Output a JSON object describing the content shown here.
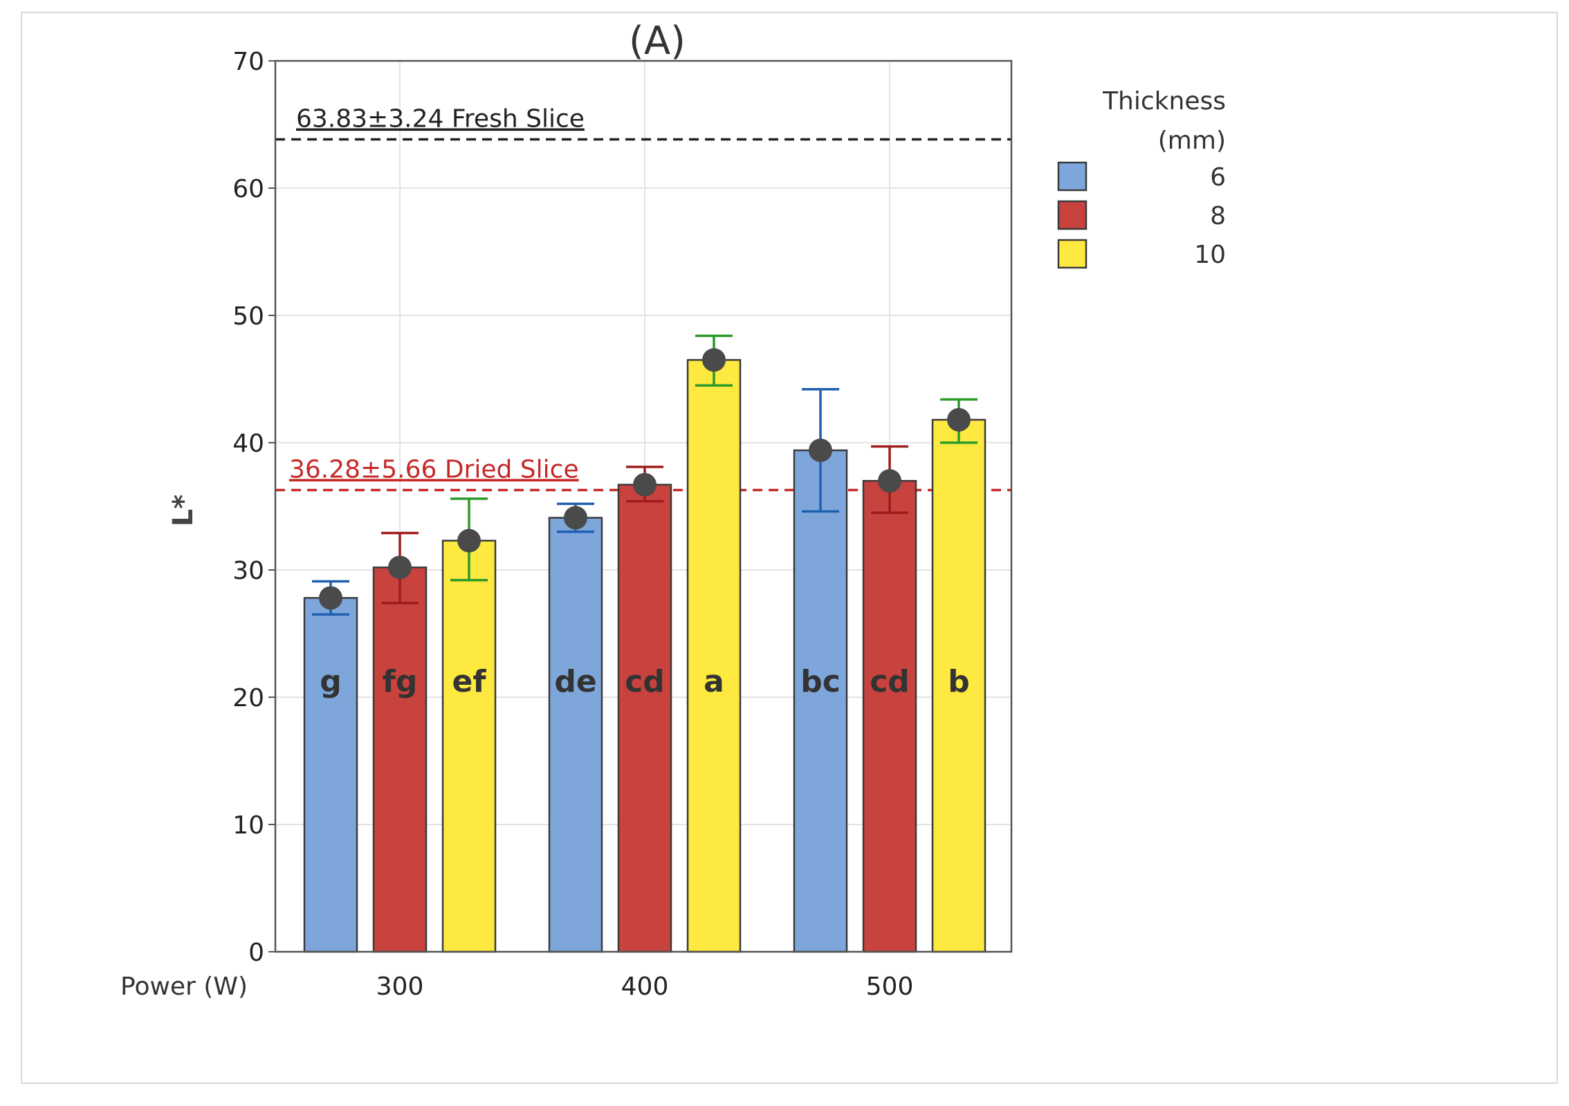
{
  "chart_data": {
    "type": "bar",
    "title": "(A)",
    "ylabel": "L*",
    "xlabel": "Power (W)",
    "ylim": [
      0,
      70
    ],
    "yticks": [
      0,
      10,
      20,
      30,
      40,
      50,
      60,
      70
    ],
    "grid": true,
    "categories": [
      "300",
      "400",
      "500"
    ],
    "legend": {
      "title_line1": "Thickness",
      "title_line2": "(mm)",
      "placement": "right"
    },
    "series": [
      {
        "name": "6",
        "color": "#7ea6db",
        "values": [
          27.8,
          34.1,
          39.4
        ],
        "err_low": [
          26.5,
          33.0,
          34.6
        ],
        "err_high": [
          29.1,
          35.2,
          44.2
        ],
        "letters": [
          "g",
          "de",
          "bc"
        ],
        "errcolor": "#1f5fb0"
      },
      {
        "name": "8",
        "color": "#c8423e",
        "values": [
          30.2,
          36.7,
          37.0
        ],
        "err_low": [
          27.4,
          35.4,
          34.5
        ],
        "err_high": [
          32.9,
          38.1,
          39.7
        ],
        "letters": [
          "fg",
          "cd",
          "cd"
        ],
        "errcolor": "#a01c1c"
      },
      {
        "name": "10",
        "color": "#fde93f",
        "values": [
          32.3,
          46.5,
          41.8
        ],
        "err_low": [
          29.2,
          44.5,
          40.0
        ],
        "err_high": [
          35.6,
          48.4,
          43.4
        ],
        "letters": [
          "ef",
          "a",
          "b"
        ],
        "errcolor": "#2a9a2a"
      }
    ],
    "reference_lines": [
      {
        "value": 63.83,
        "label": "63.83±3.24 Fresh Slice",
        "color": "#222222"
      },
      {
        "value": 36.28,
        "label": "36.28±5.66 Dried Slice",
        "color": "#c62828"
      }
    ]
  }
}
